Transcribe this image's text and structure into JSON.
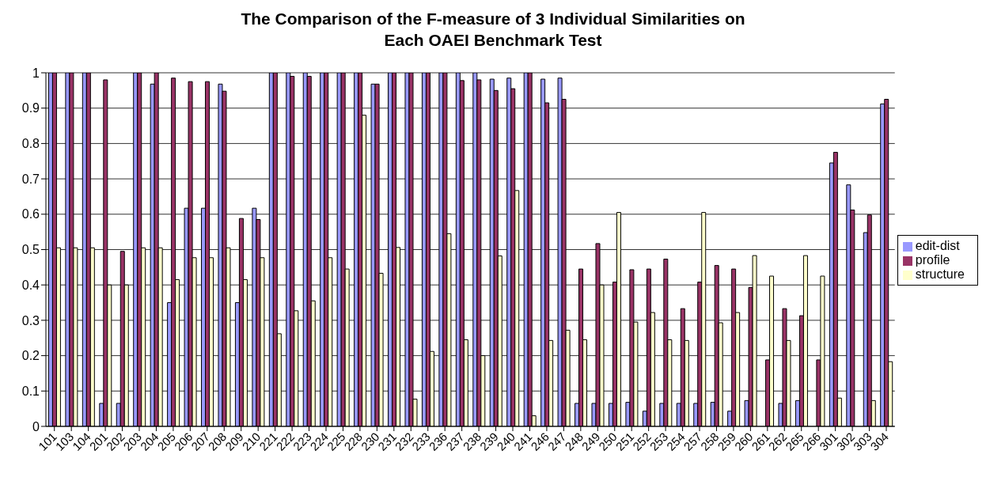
{
  "chart_data": {
    "type": "bar",
    "title": "The Comparison of the F-measure of 3 Individual Similarities on Each OAEI Benchmark Test",
    "categories": [
      "101",
      "103",
      "104",
      "201",
      "202",
      "203",
      "204",
      "205",
      "206",
      "207",
      "208",
      "209",
      "210",
      "221",
      "222",
      "223",
      "224",
      "225",
      "228",
      "230",
      "231",
      "232",
      "233",
      "236",
      "237",
      "238",
      "239",
      "240",
      "241",
      "246",
      "247",
      "248",
      "249",
      "250",
      "251",
      "252",
      "253",
      "254",
      "257",
      "258",
      "259",
      "260",
      "261",
      "262",
      "265",
      "266",
      "301",
      "302",
      "303",
      "304"
    ],
    "series": [
      {
        "name": "edit-dist",
        "color": "#9999ff",
        "values": [
          1,
          1,
          1,
          0.065,
          0.065,
          1,
          0.968,
          0.35,
          0.617,
          0.617,
          0.968,
          0.35,
          0.617,
          1,
          1,
          1,
          1,
          1,
          1,
          0.968,
          1,
          1,
          1,
          1,
          1,
          1,
          0.982,
          0.985,
          1,
          0.982,
          0.985,
          0.065,
          0.065,
          0.065,
          0.068,
          0.043,
          0.065,
          0.065,
          0.065,
          0.068,
          0.043,
          0.073,
          0,
          0.065,
          0.073,
          0,
          0.745,
          0.683,
          0.548,
          0.912
        ]
      },
      {
        "name": "profile",
        "color": "#993366",
        "values": [
          1,
          1,
          1,
          0.98,
          0.495,
          1,
          1,
          0.985,
          0.975,
          0.975,
          0.948,
          0.588,
          0.585,
          1,
          0.99,
          0.99,
          1,
          1,
          1,
          0.968,
          1,
          1,
          1,
          1,
          0.978,
          0.98,
          0.95,
          0.955,
          1,
          0.915,
          0.925,
          0.445,
          0.517,
          0.408,
          0.443,
          0.445,
          0.473,
          0.333,
          0.408,
          0.455,
          0.445,
          0.393,
          0.188,
          0.333,
          0.313,
          0.188,
          0.775,
          0.612,
          0.598,
          0.925
        ]
      },
      {
        "name": "structure",
        "color": "#ffffcc",
        "values": [
          0.505,
          0.505,
          0.505,
          0.4,
          0.4,
          0.505,
          0.505,
          0.415,
          0.477,
          0.477,
          0.505,
          0.415,
          0.477,
          0.262,
          0.327,
          0.355,
          0.477,
          0.445,
          0.88,
          0.433,
          0.506,
          0.077,
          0.212,
          0.545,
          0.245,
          0.2,
          0.482,
          0.667,
          0.03,
          0.243,
          0.272,
          0.245,
          0.4,
          0.605,
          0.295,
          0.322,
          0.245,
          0.243,
          0.605,
          0.293,
          0.322,
          0.483,
          0.425,
          0.243,
          0.483,
          0.425,
          0.08,
          0,
          0.073,
          0.183
        ]
      }
    ],
    "ylim": [
      0,
      1
    ],
    "yticks": [
      0,
      0.1,
      0.2,
      0.3,
      0.4,
      0.5,
      0.6,
      0.7,
      0.8,
      0.9,
      1
    ],
    "grid": "y",
    "legend": "right"
  }
}
